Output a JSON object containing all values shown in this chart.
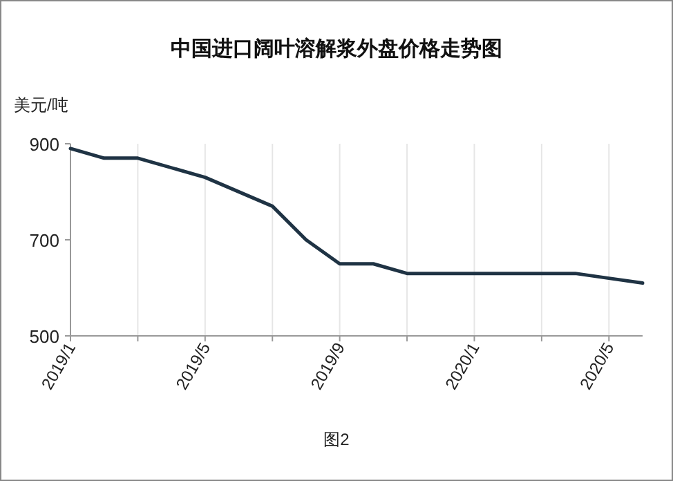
{
  "chart_data": {
    "type": "line",
    "title": "中国进口阔叶溶解浆外盘价格走势图",
    "ylabel": "美元/吨",
    "annotations": [
      "图2"
    ],
    "x": [
      "2019-01",
      "2019-02",
      "2019-03",
      "2019-05",
      "2019-07",
      "2019-08",
      "2019-09",
      "2019-10",
      "2019-11",
      "2020-04",
      "2020-05",
      "2020-06"
    ],
    "series": [
      {
        "color": "#1f3344",
        "values": [
          890,
          870,
          870,
          830,
          770,
          700,
          650,
          650,
          630,
          630,
          620,
          610
        ]
      }
    ],
    "xlim": [
      "2019-01",
      "2020-06"
    ],
    "xticks": [
      {
        "value": "2019-01",
        "label": "2019/1"
      },
      {
        "value": "2019-03",
        "label": null
      },
      {
        "value": "2019-05",
        "label": "2019/5"
      },
      {
        "value": "2019-07",
        "label": null
      },
      {
        "value": "2019-09",
        "label": "2019/9"
      },
      {
        "value": "2019-11",
        "label": null
      },
      {
        "value": "2020-01",
        "label": "2020/1"
      },
      {
        "value": "2020-03",
        "label": null
      },
      {
        "value": "2020-05",
        "label": "2020/5"
      }
    ],
    "ylim": [
      500,
      900
    ],
    "yticks": [
      500,
      700,
      900
    ],
    "grid": "x",
    "marker": "none",
    "line_style": "solid"
  }
}
